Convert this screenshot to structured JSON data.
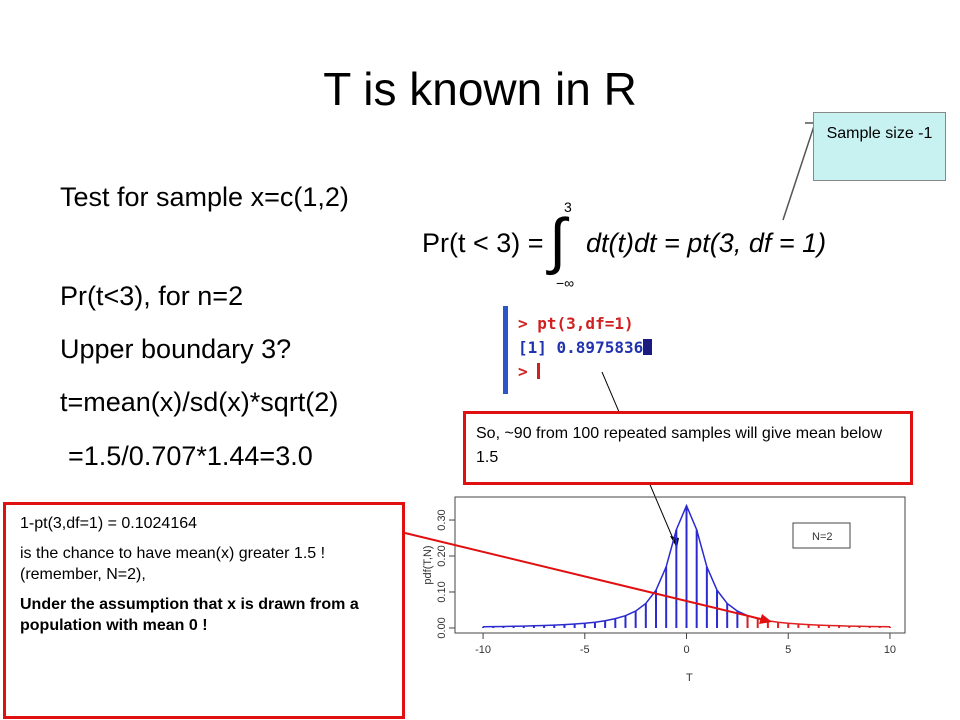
{
  "title": "T is known in R",
  "bullets": [
    "Test for sample x=c(1,2)",
    "Pr(t<3), for n=2",
    "Upper boundary 3?",
    "t=mean(x)/sd(x)*sqrt(2)",
    "=1.5/0.707*1.44=3.0"
  ],
  "formula": {
    "lhs": "Pr(t < 3) =",
    "integral": "∫",
    "upper": "3",
    "lower": "−∞",
    "rhs": "dt(t)dt = pt(3, df = 1)"
  },
  "callout": "Sample size -1",
  "console": {
    "command": "> pt(3,df=1)",
    "result": "[1] 0.8975836",
    "prompt": ">"
  },
  "note_top": "So, ~90 from 100 repeated samples will give mean below 1.5",
  "note_bottom": {
    "line1": "1-pt(3,df=1) = 0.1024164",
    "line2": "is the chance to have mean(x) greater 1.5 ! (remember, N=2),",
    "line3": "Under the assumption that x is drawn from a population with mean 0 !"
  },
  "chart_data": {
    "type": "density",
    "x_label": "T",
    "y_label": "pdf(T,N)",
    "legend": "N=2",
    "legend_corner": "upper right",
    "x": [
      -10,
      -9.5,
      -9,
      -8.5,
      -8,
      -7.5,
      -7,
      -6.5,
      -6,
      -5.5,
      -5,
      -4.5,
      -4,
      -3.5,
      -3,
      -2.5,
      -2,
      -1.5,
      -1,
      -0.5,
      0,
      0.5,
      1,
      1.5,
      2,
      2.5,
      3,
      3.5,
      4,
      4.5,
      5,
      5.5,
      6,
      6.5,
      7,
      7.5,
      8,
      8.5,
      9,
      9.5,
      10
    ],
    "series": [
      {
        "color": "#2a2ad0",
        "values": [
          0.0033,
          0.0037,
          0.0042,
          0.0047,
          0.0052,
          0.006,
          0.0068,
          0.0079,
          0.0092,
          0.0109,
          0.013,
          0.016,
          0.02,
          0.026,
          0.034,
          0.047,
          0.068,
          0.105,
          0.17,
          0.273,
          0.34,
          0.273,
          0.17,
          0.105,
          0.068,
          0.047,
          0.034,
          null,
          null,
          null,
          null,
          null,
          null,
          null,
          null,
          null,
          null,
          null,
          null,
          null,
          null
        ]
      },
      {
        "color": "#e02020",
        "values": [
          null,
          null,
          null,
          null,
          null,
          null,
          null,
          null,
          null,
          null,
          null,
          null,
          null,
          null,
          null,
          null,
          null,
          null,
          null,
          null,
          null,
          null,
          null,
          null,
          null,
          null,
          0.034,
          0.026,
          0.02,
          0.016,
          0.013,
          0.0109,
          0.0092,
          0.0079,
          0.0068,
          0.006,
          0.0052,
          0.0047,
          0.0042,
          0.0037,
          0.0033
        ]
      }
    ],
    "xlim": [
      -11.38,
      10.74
    ],
    "ylim": [
      -0.014,
      0.364
    ],
    "xticks": [
      -10,
      -5,
      0,
      5,
      10
    ],
    "yticks": [
      {
        "value": 0,
        "label": "0.00"
      },
      {
        "value": 0.1,
        "label": "0.10"
      },
      {
        "value": 0.2,
        "label": "0.20"
      },
      {
        "value": 0.3,
        "label": "0.30"
      }
    ]
  }
}
